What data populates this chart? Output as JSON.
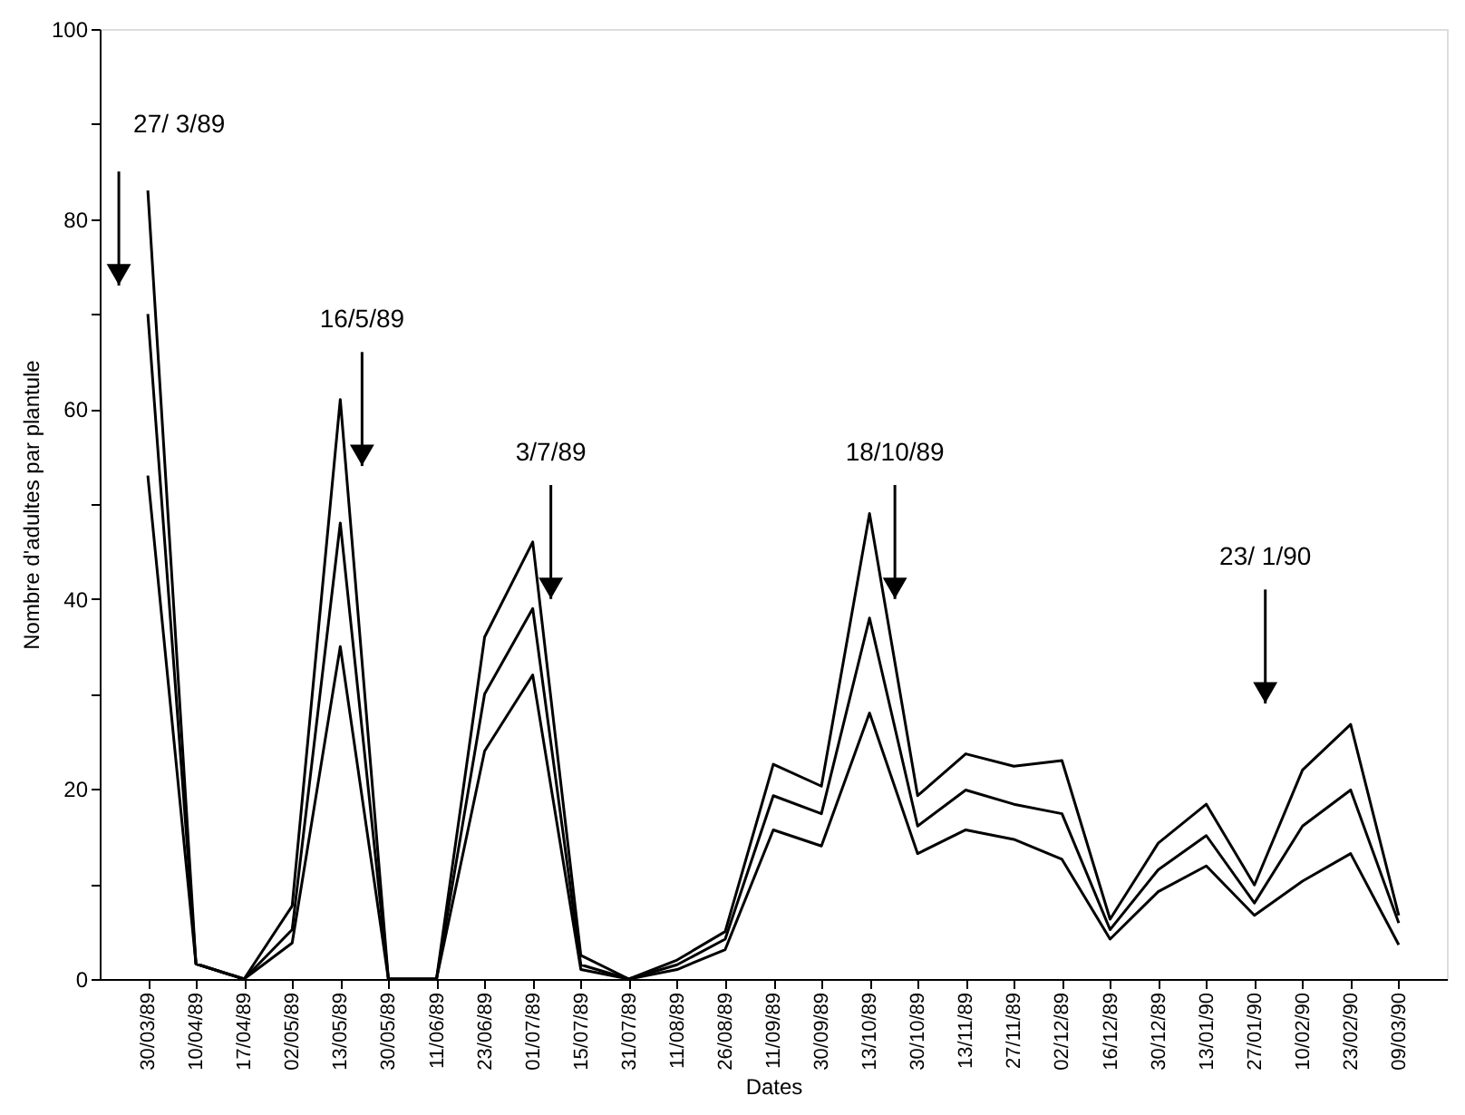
{
  "chart_data": {
    "type": "line",
    "xlabel": "Dates",
    "ylabel": "Nombre d'adultes par plantule",
    "categories": [
      "30/03/89",
      "10/04/89",
      "17/04/89",
      "02/05/89",
      "13/05/89",
      "30/05/89",
      "11/06/89",
      "23/06/89",
      "01/07/89",
      "15/07/89",
      "31/07/89",
      "11/08/89",
      "26/08/89",
      "11/09/89",
      "30/09/89",
      "13/10/89",
      "30/10/89",
      "13/11/89",
      "27/11/89",
      "02/12/89",
      "16/12/89",
      "30/12/89",
      "13/01/90",
      "27/01/90",
      "10/02/90",
      "23/02/90",
      "09/03/90"
    ],
    "series": [
      {
        "color": "#000000",
        "values": [
          83,
          1.6,
          0,
          7.7,
          61,
          0,
          0,
          36,
          46,
          2.5,
          0,
          2,
          5,
          22.6,
          20.3,
          49,
          19.3,
          23.7,
          22.4,
          23,
          6.3,
          14.3,
          18.4,
          9.9,
          22,
          26.8,
          6.7
        ]
      },
      {
        "color": "#000000",
        "values": [
          70,
          1.6,
          0,
          5.2,
          48,
          0,
          0,
          30,
          39,
          1.5,
          0,
          1.5,
          4.2,
          19.3,
          17.4,
          38,
          16.1,
          19.9,
          18.4,
          17.4,
          5.2,
          11.5,
          15.1,
          8,
          16.1,
          19.9,
          5.9
        ]
      },
      {
        "color": "#000000",
        "values": [
          53,
          1.6,
          0,
          3.8,
          35,
          0,
          0,
          24,
          32,
          1,
          0,
          1,
          3.1,
          15.7,
          14,
          28,
          13.2,
          15.7,
          14.7,
          12.6,
          4.2,
          9.2,
          11.9,
          6.7,
          10.3,
          13.2,
          3.6
        ]
      }
    ],
    "annotations": [
      "27/ 3/89",
      "16/5/89",
      "3/7/89",
      "18/10/89",
      "23/ 1/90"
    ],
    "ylim": [
      0,
      100
    ],
    "yticks": [
      0,
      {
        "value": 10,
        "label": null
      },
      20,
      {
        "value": 30,
        "label": null
      },
      40,
      {
        "value": 50,
        "label": null
      },
      60,
      {
        "value": 70,
        "label": null
      },
      80,
      {
        "value": 90,
        "label": null
      },
      100
    ],
    "grid": false,
    "line_style": "solid",
    "marker": "none"
  }
}
